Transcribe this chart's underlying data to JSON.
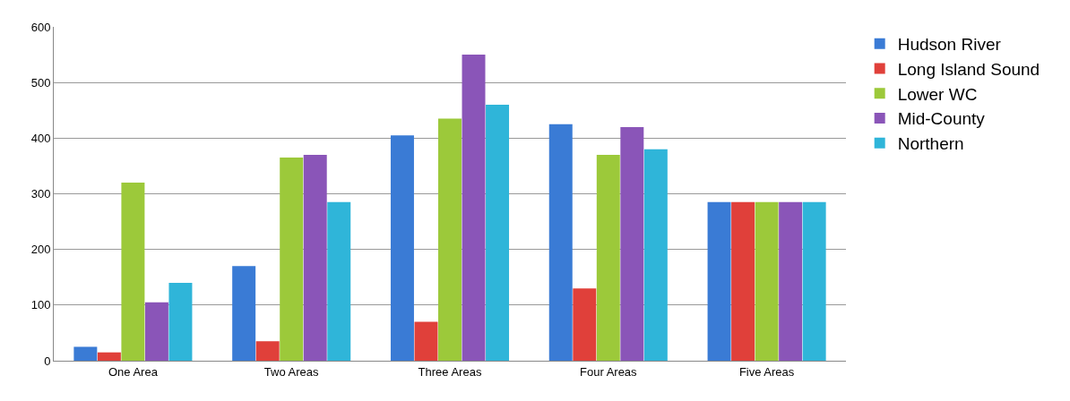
{
  "chart_data": {
    "type": "bar",
    "categories": [
      "One Area",
      "Two Areas",
      "Three Areas",
      "Four Areas",
      "Five Areas"
    ],
    "series": [
      {
        "name": "Hudson River",
        "color": "#3a7bd5",
        "values": [
          25,
          170,
          405,
          425,
          285
        ]
      },
      {
        "name": "Long Island Sound",
        "color": "#e0403a",
        "values": [
          15,
          35,
          70,
          130,
          285
        ]
      },
      {
        "name": "Lower WC",
        "color": "#9cc93a",
        "values": [
          320,
          365,
          435,
          370,
          285
        ]
      },
      {
        "name": "Mid-County",
        "color": "#8a55b8",
        "values": [
          105,
          370,
          550,
          420,
          285
        ]
      },
      {
        "name": "Northern",
        "color": "#2fb5d9",
        "values": [
          140,
          285,
          460,
          380,
          285
        ]
      }
    ],
    "ylim": [
      0,
      600
    ],
    "yticks": [
      0,
      100,
      200,
      300,
      400,
      500,
      600
    ],
    "grid": "y",
    "legend": "right"
  }
}
